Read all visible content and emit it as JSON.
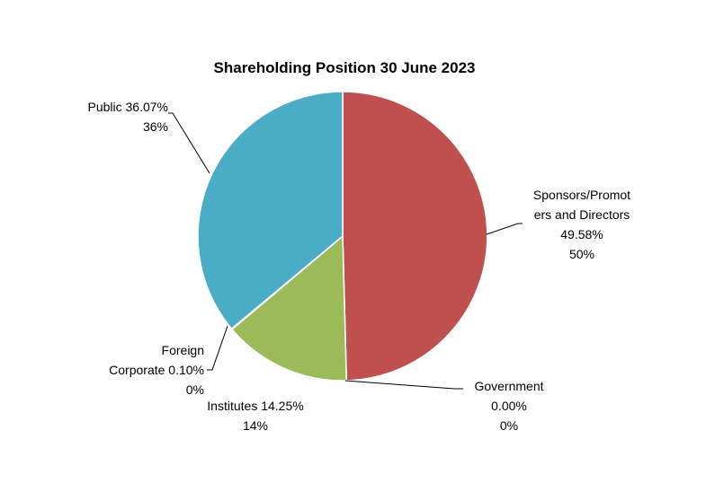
{
  "chart_data": {
    "type": "pie",
    "title": "Shareholding Position 30 June 2023",
    "start_angle_deg": 0,
    "direction": "clockwise",
    "slices": [
      {
        "id": "sponsors",
        "lines": [
          "Sponsors/Promot",
          "ers and Directors",
          "49.58%",
          "50%"
        ],
        "value": 49.58,
        "color": "#C0504D"
      },
      {
        "id": "government",
        "lines": [
          "Government",
          "0.00%",
          "0%"
        ],
        "value": 0.0,
        "color": "#8064A2"
      },
      {
        "id": "institutes",
        "lines": [
          "Institutes 14.25%",
          "14%"
        ],
        "value": 14.25,
        "color": "#9BBB59"
      },
      {
        "id": "foreign",
        "lines": [
          "Foreign",
          "Corporate 0.10%",
          "0%"
        ],
        "value": 0.1,
        "color": "#F79646"
      },
      {
        "id": "public",
        "lines": [
          "Public 36.07%",
          "36%"
        ],
        "value": 36.07,
        "color": "#4BACC6"
      }
    ]
  }
}
